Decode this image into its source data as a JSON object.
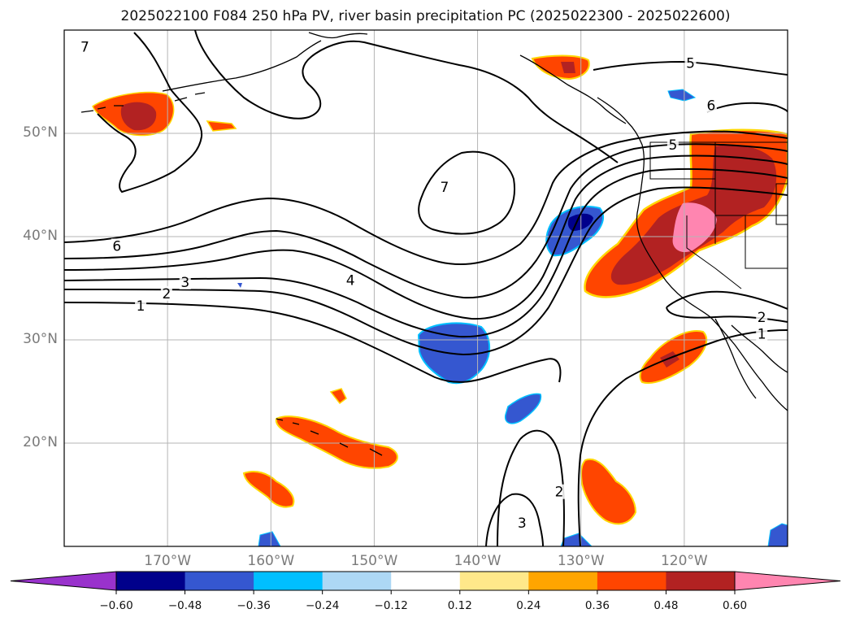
{
  "title": "2025022100 F084 250 hPa PV, river basin precipitation PC (2025022300 - 2025022600)",
  "map": {
    "lon_range": [
      -180,
      -110
    ],
    "lat_range": [
      10,
      60
    ],
    "lat_labels": [
      {
        "lat": 50,
        "text": "50°N"
      },
      {
        "lat": 40,
        "text": "40°N"
      },
      {
        "lat": 30,
        "text": "30°N"
      },
      {
        "lat": 20,
        "text": "20°N"
      }
    ],
    "lon_labels": [
      {
        "lon": -170,
        "text": "170°W"
      },
      {
        "lon": -160,
        "text": "160°W"
      },
      {
        "lon": -150,
        "text": "150°W"
      },
      {
        "lon": -140,
        "text": "140°W"
      },
      {
        "lon": -130,
        "text": "130°W"
      },
      {
        "lon": -120,
        "text": "120°W"
      }
    ],
    "contour_labels": [
      {
        "text": "7",
        "lon": -178,
        "lat": 58.4
      },
      {
        "text": "5",
        "lon": -119.4,
        "lat": 56.8
      },
      {
        "text": "6",
        "lon": -117.4,
        "lat": 52.7
      },
      {
        "text": "5",
        "lon": -121.1,
        "lat": 48.9
      },
      {
        "text": "7",
        "lon": -143.2,
        "lat": 44.8
      },
      {
        "text": "6",
        "lon": -174.9,
        "lat": 39.1
      },
      {
        "text": "4",
        "lon": -152.3,
        "lat": 35.8
      },
      {
        "text": "3",
        "lon": -168.3,
        "lat": 35.6
      },
      {
        "text": "2",
        "lon": -170.1,
        "lat": 34.5
      },
      {
        "text": "1",
        "lon": -172.6,
        "lat": 33.3
      },
      {
        "text": "2",
        "lon": -112.5,
        "lat": 32.2
      },
      {
        "text": "1",
        "lon": -112.5,
        "lat": 30.6
      },
      {
        "text": "2",
        "lon": -132.1,
        "lat": 15.3
      },
      {
        "text": "3",
        "lon": -135.7,
        "lat": 12.3
      }
    ]
  },
  "colorbar": {
    "levels": [
      "−0.60",
      "−0.48",
      "−0.36",
      "−0.24",
      "−0.12",
      "0.12",
      "0.24",
      "0.36",
      "0.48",
      "0.60"
    ],
    "colors": [
      "#9932cc",
      "#00008b",
      "#3557d0",
      "#00bfff",
      "#add8f5",
      "#ffffff",
      "#ffe88a",
      "#ffa500",
      "#ff4500",
      "#b22222",
      "#ff85b0"
    ]
  },
  "palette": {
    "orange_red": "#ff4500",
    "dark_red": "#b22222",
    "pink": "#ff85b0",
    "yellow": "#ffd700",
    "royal_blue": "#3557d0",
    "navy": "#00008b",
    "sky": "#00bfff"
  }
}
